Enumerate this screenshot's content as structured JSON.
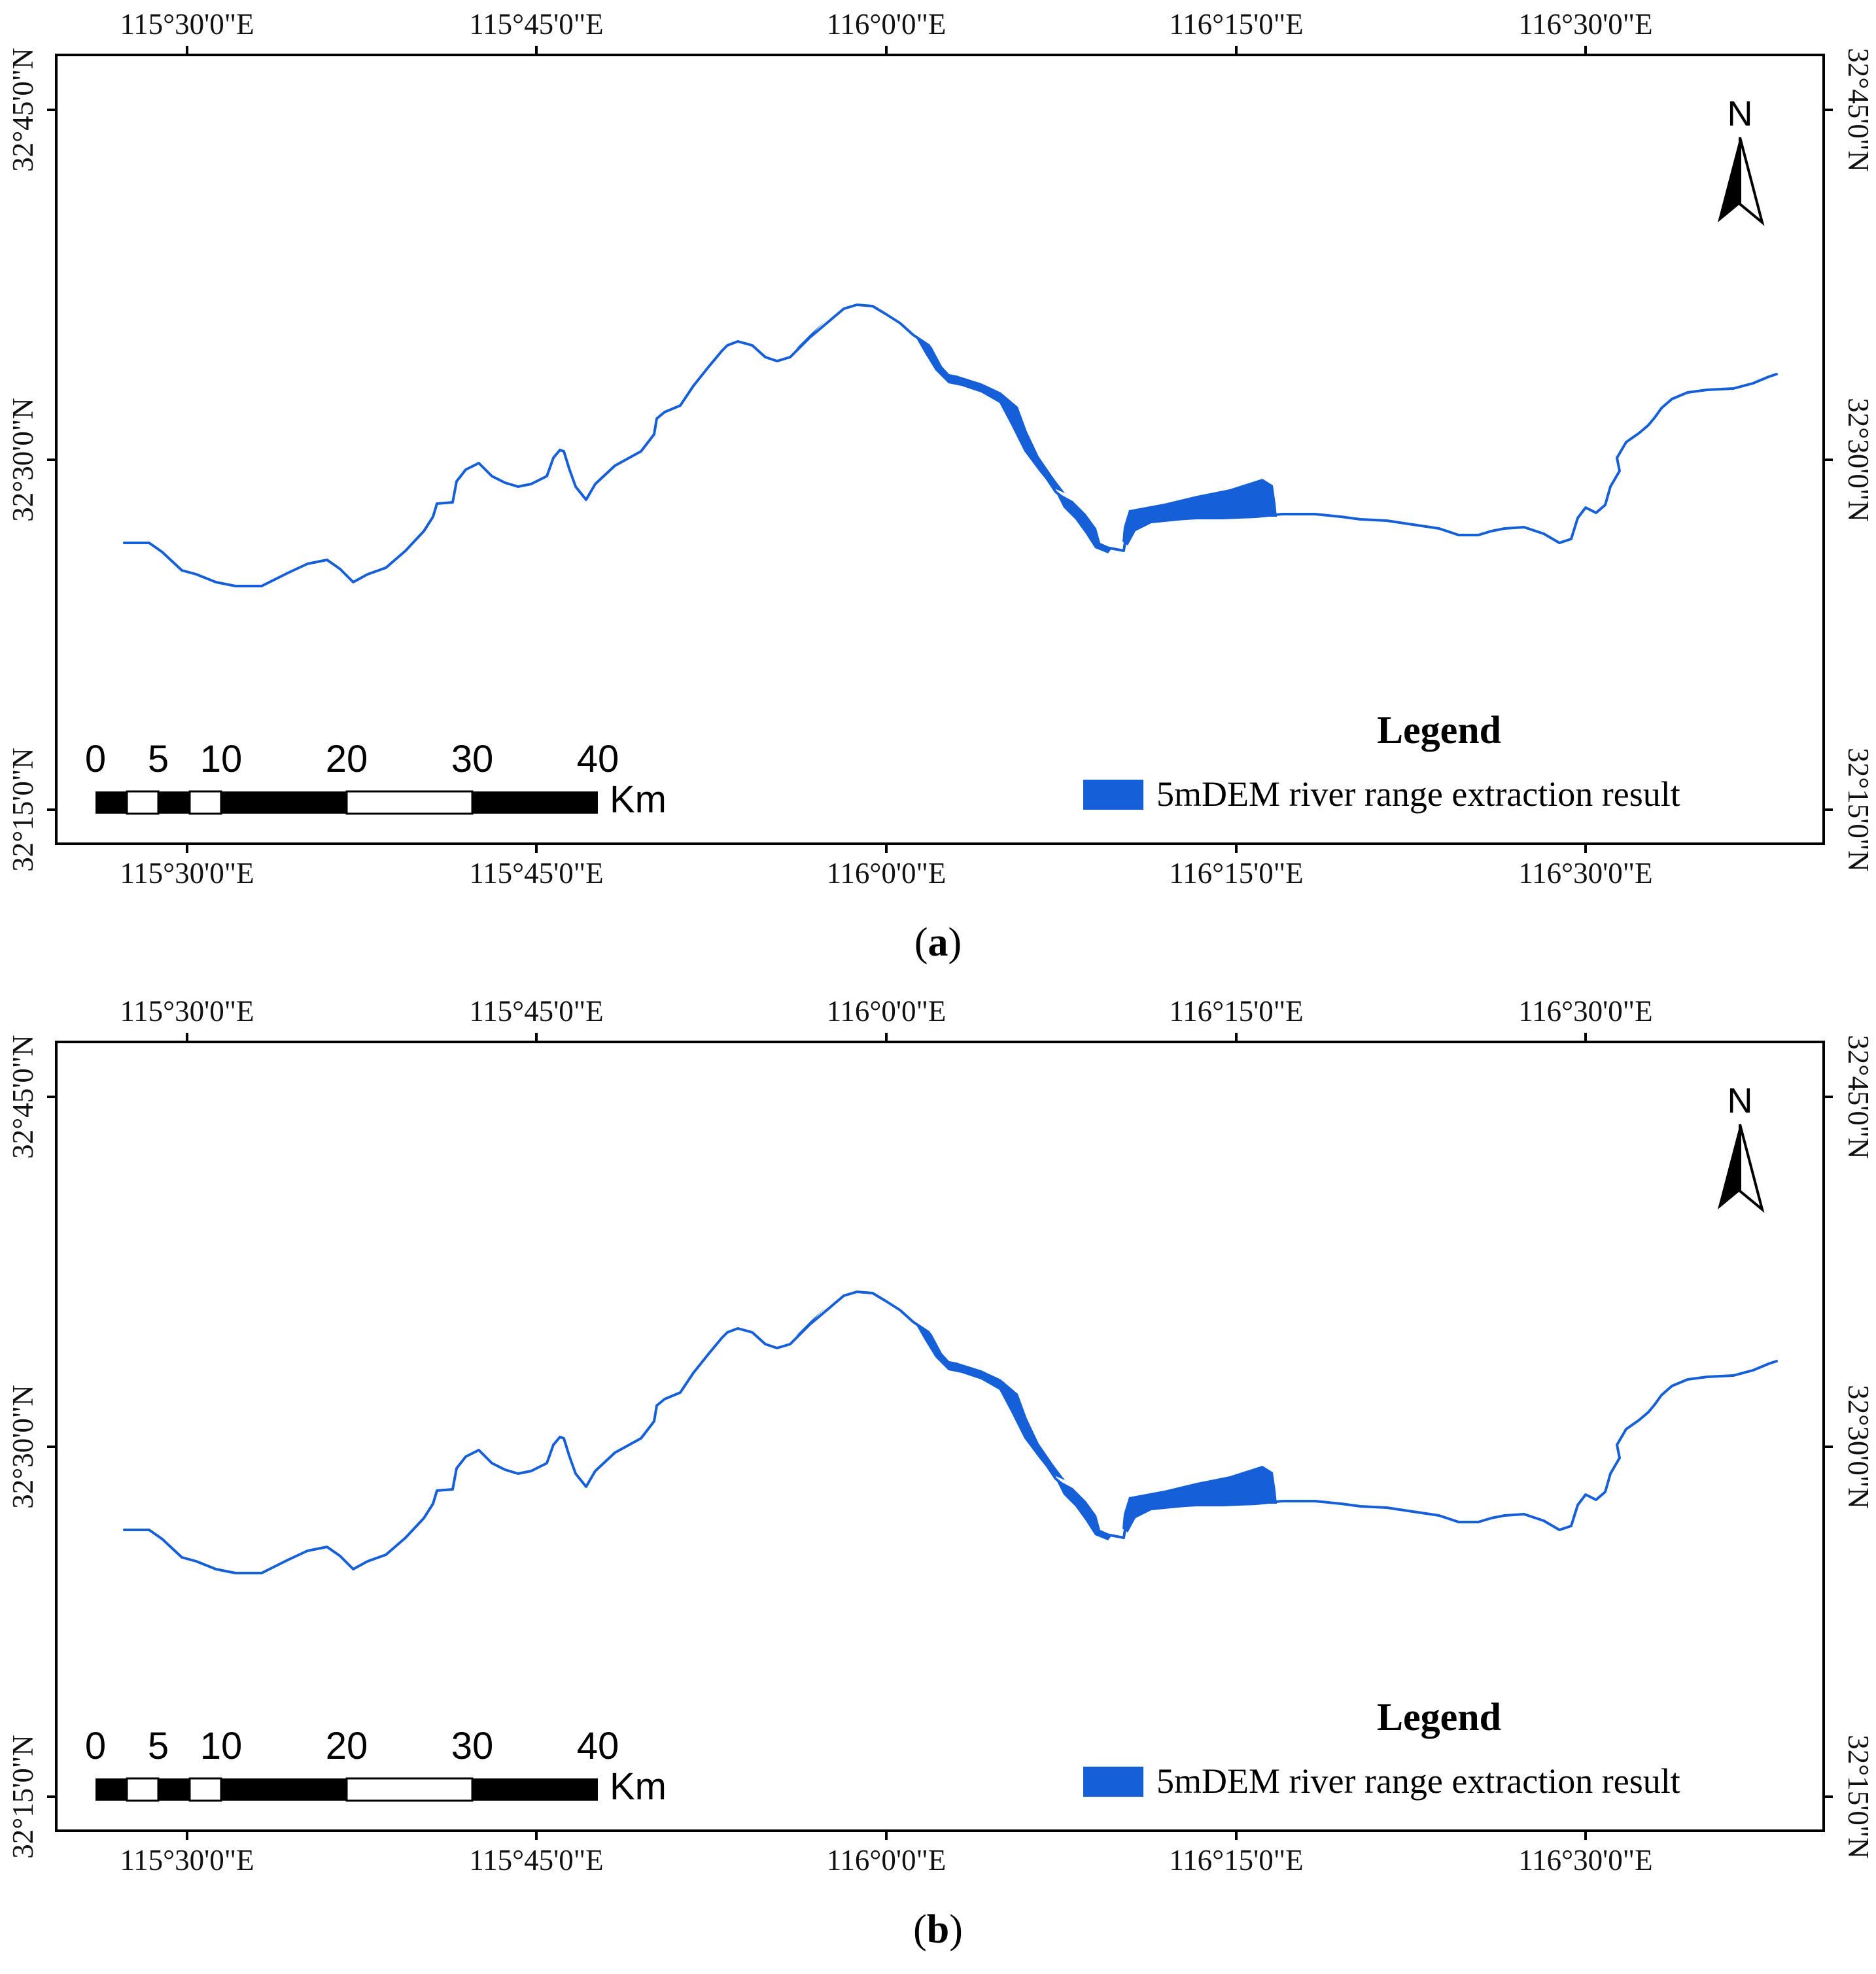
{
  "figure": {
    "panels": [
      {
        "caption_open": "(",
        "caption_letter": "a",
        "caption_close": ")",
        "map": {
          "lon_ticks": [
            "115°30'0\"E",
            "115°45'0\"E",
            "116°0'0\"E",
            "116°15'0\"E",
            "116°30'0\"E"
          ],
          "lat_ticks": [
            "32°45'0\"N",
            "32°30'0\"N",
            "32°15'0\"N"
          ],
          "north_label": "N",
          "legend_title": "Legend",
          "legend_item": "5mDEM river range extraction result",
          "scale_labels": [
            "0",
            "5",
            "10",
            "20",
            "30",
            "40"
          ],
          "scale_unit": "Km",
          "river_color": "#1560d8"
        }
      },
      {
        "caption_open": "(",
        "caption_letter": "b",
        "caption_close": ")",
        "map": {
          "lon_ticks": [
            "115°30'0\"E",
            "115°45'0\"E",
            "116°0'0\"E",
            "116°15'0\"E",
            "116°30'0\"E"
          ],
          "lat_ticks": [
            "32°45'0\"N",
            "32°30'0\"N",
            "32°15'0\"N"
          ],
          "north_label": "N",
          "legend_title": "Legend",
          "legend_item": "5mDEM river range extraction result",
          "scale_labels": [
            "0",
            "5",
            "10",
            "20",
            "30",
            "40"
          ],
          "scale_unit": "Km",
          "river_color": "#1560d8"
        }
      }
    ]
  }
}
